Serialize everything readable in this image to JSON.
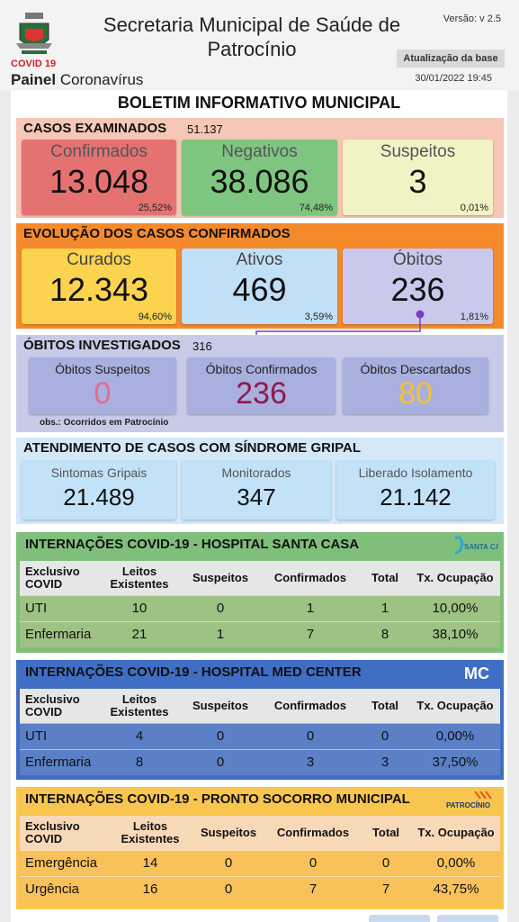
{
  "header": {
    "covid_tag": "COVID 19",
    "painel_bold": "Painel",
    "painel_rest": " Coronavírus",
    "title": "Secretaria Municipal de Saúde de Patrocínio",
    "version": "Versão: v 2.5",
    "update_label": "Atualização da base",
    "update_date": "30/01/2022 19:45"
  },
  "board_title": "BOLETIM INFORMATIVO MUNICIPAL",
  "casos": {
    "title": "CASOS EXAMINADOS",
    "total": "51.137",
    "cards": [
      {
        "label": "Confirmados",
        "value": "13.048",
        "pct": "25,52%",
        "color": "#e67171"
      },
      {
        "label": "Negativos",
        "value": "38.086",
        "pct": "74,48%",
        "color": "#7ec57f"
      },
      {
        "label": "Suspeitos",
        "value": "3",
        "pct": "0,01%",
        "color": "#f1f3c4"
      }
    ]
  },
  "evolucao": {
    "title": "EVOLUÇÃO DOS CASOS CONFIRMADOS",
    "cards": [
      {
        "label": "Curados",
        "value": "12.343",
        "pct": "94,60%",
        "color": "#fcd34f"
      },
      {
        "label": "Ativos",
        "value": "469",
        "pct": "3,59%",
        "color": "#c0e0f7"
      },
      {
        "label": "Óbitos",
        "value": "236",
        "pct": "1,81%",
        "color": "#c9c9ee"
      }
    ]
  },
  "obitos": {
    "title": "ÓBITOS INVESTIGADOS",
    "total": "316",
    "cards": [
      {
        "label": "Óbitos Suspeitos",
        "value": "0",
        "color": "#e46a8f"
      },
      {
        "label": "Óbitos Confirmados",
        "value": "236",
        "color": "#8e1b4e"
      },
      {
        "label": "Óbitos Descartados",
        "value": "80",
        "color": "#f2c23a"
      }
    ],
    "obs": "obs.: Ocorridos em Patrocínio"
  },
  "sindrome": {
    "title": "ATENDIMENTO DE CASOS COM SÍNDROME GRIPAL",
    "cards": [
      {
        "label": "Sintomas Gripais",
        "value": "21.489"
      },
      {
        "label": "Monitorados",
        "value": "347"
      },
      {
        "label": "Liberado Isolamento",
        "value": "21.142"
      }
    ]
  },
  "hospitals": [
    {
      "title": "INTERNAÇÕES COVID-19 - HOSPITAL SANTA CASA",
      "logo_text": "SANTA CASA",
      "headers": [
        "Exclusivo COVID",
        "Leitos Existentes",
        "Suspeitos",
        "Confirmados",
        "Total",
        "Tx. Ocupação"
      ],
      "rows": [
        [
          "UTI",
          "10",
          "0",
          "1",
          "1",
          "10,00%"
        ],
        [
          "Enfermaria",
          "21",
          "1",
          "7",
          "8",
          "38,10%"
        ]
      ]
    },
    {
      "title": "INTERNAÇÕES COVID-19 - HOSPITAL MED CENTER",
      "logo_text": "MC",
      "headers": [
        "Exclusivo COVID",
        "Leitos Existentes",
        "Suspeitos",
        "Confirmados",
        "Total",
        "Tx. Ocupação"
      ],
      "rows": [
        [
          "UTI",
          "4",
          "0",
          "0",
          "0",
          "0,00%"
        ],
        [
          "Enfermaria",
          "8",
          "0",
          "3",
          "3",
          "37,50%"
        ]
      ]
    },
    {
      "title": "INTERNAÇÕES COVID-19 - PRONTO SOCORRO MUNICIPAL",
      "logo_text": "PATROCÍNIO",
      "headers": [
        "Exclusivo COVID",
        "Leitos Existentes",
        "Suspeitos",
        "Confirmados",
        "Total",
        "Tx. Ocupação"
      ],
      "rows": [
        [
          "Emergência",
          "14",
          "0",
          "0",
          "0",
          "0,00%"
        ],
        [
          "Urgência",
          "16",
          "0",
          "7",
          "7",
          "43,75%"
        ]
      ]
    }
  ]
}
